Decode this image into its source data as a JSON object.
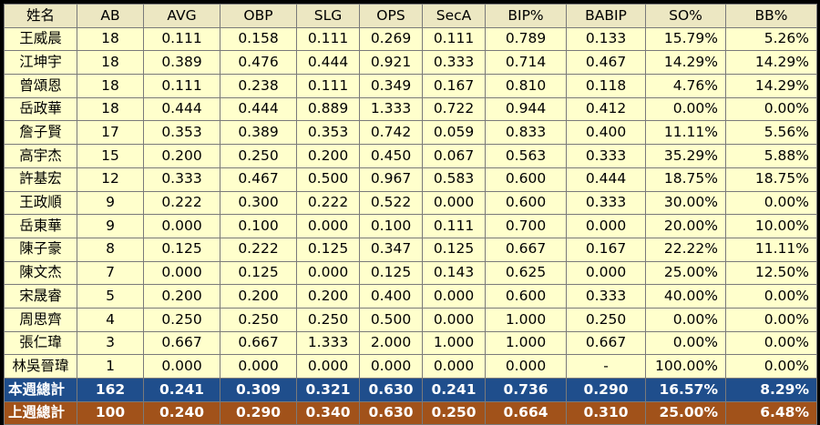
{
  "table": {
    "headers": [
      "姓名",
      "AB",
      "AVG",
      "OBP",
      "SLG",
      "OPS",
      "SecA",
      "BIP%",
      "BABIP",
      "SO%",
      "BB%"
    ],
    "rows": [
      [
        "王威晨",
        "18",
        "0.111",
        "0.158",
        "0.111",
        "0.269",
        "0.111",
        "0.789",
        "0.133",
        "15.79%",
        "5.26%"
      ],
      [
        "江坤宇",
        "18",
        "0.389",
        "0.476",
        "0.444",
        "0.921",
        "0.333",
        "0.714",
        "0.467",
        "14.29%",
        "14.29%"
      ],
      [
        "曾頌恩",
        "18",
        "0.111",
        "0.238",
        "0.111",
        "0.349",
        "0.167",
        "0.810",
        "0.118",
        "4.76%",
        "14.29%"
      ],
      [
        "岳政華",
        "18",
        "0.444",
        "0.444",
        "0.889",
        "1.333",
        "0.722",
        "0.944",
        "0.412",
        "0.00%",
        "0.00%"
      ],
      [
        "詹子賢",
        "17",
        "0.353",
        "0.389",
        "0.353",
        "0.742",
        "0.059",
        "0.833",
        "0.400",
        "11.11%",
        "5.56%"
      ],
      [
        "高宇杰",
        "15",
        "0.200",
        "0.250",
        "0.200",
        "0.450",
        "0.067",
        "0.563",
        "0.333",
        "35.29%",
        "5.88%"
      ],
      [
        "許基宏",
        "12",
        "0.333",
        "0.467",
        "0.500",
        "0.967",
        "0.583",
        "0.600",
        "0.444",
        "18.75%",
        "18.75%"
      ],
      [
        "王政順",
        "9",
        "0.222",
        "0.300",
        "0.222",
        "0.522",
        "0.000",
        "0.600",
        "0.333",
        "30.00%",
        "0.00%"
      ],
      [
        "岳東華",
        "9",
        "0.000",
        "0.100",
        "0.000",
        "0.100",
        "0.111",
        "0.700",
        "0.000",
        "20.00%",
        "10.00%"
      ],
      [
        "陳子豪",
        "8",
        "0.125",
        "0.222",
        "0.125",
        "0.347",
        "0.125",
        "0.667",
        "0.167",
        "22.22%",
        "11.11%"
      ],
      [
        "陳文杰",
        "7",
        "0.000",
        "0.125",
        "0.000",
        "0.125",
        "0.143",
        "0.625",
        "0.000",
        "25.00%",
        "12.50%"
      ],
      [
        "宋晟睿",
        "5",
        "0.200",
        "0.200",
        "0.200",
        "0.400",
        "0.000",
        "0.600",
        "0.333",
        "40.00%",
        "0.00%"
      ],
      [
        "周思齊",
        "4",
        "0.250",
        "0.250",
        "0.250",
        "0.500",
        "0.000",
        "1.000",
        "0.250",
        "0.00%",
        "0.00%"
      ],
      [
        "張仁瑋",
        "3",
        "0.667",
        "0.667",
        "1.333",
        "2.000",
        "1.000",
        "1.000",
        "0.667",
        "0.00%",
        "0.00%"
      ],
      [
        "林吳晉瑋",
        "1",
        "0.000",
        "0.000",
        "0.000",
        "0.000",
        "0.000",
        "0.000",
        "-",
        "100.00%",
        "0.00%"
      ]
    ],
    "totals": [
      {
        "key": "this-week",
        "cells": [
          "本週總計",
          "162",
          "0.241",
          "0.309",
          "0.321",
          "0.630",
          "0.241",
          "0.736",
          "0.290",
          "16.57%",
          "8.29%"
        ]
      },
      {
        "key": "last-week",
        "cells": [
          "上週總計",
          "100",
          "0.240",
          "0.290",
          "0.340",
          "0.630",
          "0.250",
          "0.664",
          "0.310",
          "25.00%",
          "6.48%"
        ]
      }
    ]
  },
  "colors": {
    "header_bg": "#ece7c2",
    "row_bg": "#ffffcc",
    "this_week_bg": "#1f4e8c",
    "last_week_bg": "#a1521a",
    "grid": "#7a7a7a",
    "frame": "#000000"
  }
}
